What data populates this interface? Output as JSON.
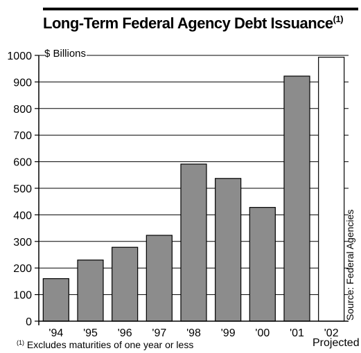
{
  "chart_data": {
    "type": "bar",
    "title": "Long-Term Federal Agency Debt Issuance",
    "title_footnote_marker": "(1)",
    "unit_label": "$ Billions",
    "categories": [
      "'94",
      "'95",
      "'96",
      "'97",
      "'98",
      "'99",
      "'00",
      "'01",
      "'02"
    ],
    "values": [
      160,
      230,
      278,
      323,
      591,
      537,
      428,
      922,
      993
    ],
    "projected_category": "'02",
    "projected_label": "Projected",
    "yticks": [
      "0",
      "100",
      "200",
      "300",
      "400",
      "500",
      "600",
      "700",
      "800",
      "900",
      "1000"
    ],
    "ylim": [
      0,
      1000
    ],
    "grid": true,
    "footnote_marker": "(1)",
    "footnote": "Excludes maturities of one year or less",
    "source": "Source:  Federal Agencies",
    "colors": {
      "bar": "#8c8c8c",
      "projected_bar": "#ffffff",
      "edge": "#000000"
    }
  }
}
